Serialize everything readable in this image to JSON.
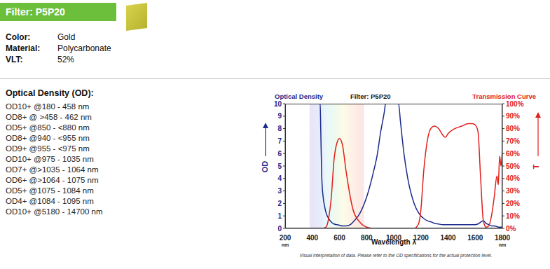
{
  "header": {
    "title": "Filter: P5P20",
    "specs": [
      {
        "label": "Color:",
        "value": "Gold"
      },
      {
        "label": "Material:",
        "value": "Polycarbonate"
      },
      {
        "label": "VLT:",
        "value": "52%"
      }
    ]
  },
  "od_list": {
    "title": "Optical Density (OD):",
    "items": [
      "OD10+ @180 - 458 nm",
      "OD8+ @ >458 - 462 nm",
      "OD5+ @850 - <880 nm",
      "OD8+ @940 - <955 nm",
      "OD9+ @955 - <975 nm",
      "OD10+ @975 - 1035 nm",
      "OD7+ @>1035 - 1064 nm",
      "OD6+ @>1064 - 1075 nm",
      "OD5+ @1075 - 1084 nm",
      "OD4+ @1084 - 1095 nm",
      "OD10+ @5180 - 14700 nm"
    ]
  },
  "chart_data": {
    "type": "line",
    "title": "Filter: P5P20",
    "xlabel": "Wavelength λ",
    "x_unit": "nm",
    "ylabel": "OD",
    "y2label": "T",
    "note": "Visual interpretation of data. Please refer to the OD specifications for the actual protection level.",
    "grid": false,
    "visible_band": [
      380,
      780
    ],
    "xlim": [
      200,
      1800
    ],
    "xticks": [
      200,
      400,
      600,
      800,
      1000,
      1200,
      1400,
      1600,
      1800
    ],
    "ylim": [
      0,
      10
    ],
    "yticks": [
      0,
      1,
      2,
      3,
      4,
      5,
      6,
      7,
      8,
      9,
      10
    ],
    "y2lim": [
      0,
      100
    ],
    "y2ticks": [
      {
        "value": 0,
        "label": "0%"
      },
      {
        "value": 10,
        "label": "10%"
      },
      {
        "value": 20,
        "label": "20%"
      },
      {
        "value": 30,
        "label": "30%"
      },
      {
        "value": 40,
        "label": "40%"
      },
      {
        "value": 50,
        "label": "50%"
      },
      {
        "value": 60,
        "label": "60%"
      },
      {
        "value": 70,
        "label": "70%"
      },
      {
        "value": 80,
        "label": "80%"
      },
      {
        "value": 90,
        "label": "90%"
      },
      {
        "value": 100,
        "label": "100%"
      }
    ],
    "x": [
      200,
      300,
      400,
      440,
      458,
      462,
      470,
      480,
      490,
      500,
      510,
      520,
      540,
      560,
      580,
      600,
      620,
      650,
      680,
      700,
      750,
      800,
      850,
      880,
      900,
      930,
      940,
      975,
      1000,
      1035,
      1050,
      1075,
      1100,
      1150,
      1180,
      1200,
      1220,
      1250,
      1280,
      1300,
      1330,
      1360,
      1380,
      1400,
      1450,
      1500,
      1550,
      1580,
      1600,
      1620,
      1640,
      1660,
      1680,
      1700,
      1720,
      1740,
      1760,
      1770,
      1780,
      1790,
      1800
    ],
    "series": [
      {
        "name": "Optical Density",
        "color": "#1b2a8c",
        "axis": "y",
        "values": [
          10,
          10,
          10,
          10,
          10,
          8,
          4,
          2.5,
          1.8,
          1.3,
          1,
          0.8,
          0.5,
          0.35,
          0.3,
          0.25,
          0.2,
          0.2,
          0.3,
          0.5,
          1.2,
          2.5,
          4.5,
          6,
          7.5,
          9.3,
          10,
          10,
          10,
          10,
          8.5,
          6,
          4.2,
          2,
          1.3,
          1,
          0.8,
          0.6,
          0.5,
          0.4,
          0.35,
          0.3,
          0.3,
          0.3,
          0.3,
          0.3,
          0.3,
          0.3,
          0.3,
          0.35,
          0.5,
          0.6,
          0.4,
          0.3,
          0.2,
          0.2,
          0.15,
          0.1,
          0.1,
          0.1,
          0.1
        ]
      },
      {
        "name": "Transmission Curve",
        "color": "#e0201c",
        "axis": "y2",
        "values": [
          0,
          0,
          0,
          0,
          0,
          0,
          0,
          0,
          0.5,
          1,
          3,
          8,
          25,
          55,
          68,
          72,
          68,
          45,
          25,
          15,
          5,
          1,
          0,
          0,
          0,
          0,
          0,
          0,
          0,
          0,
          0,
          0,
          0,
          0,
          3,
          15,
          45,
          72,
          81,
          82,
          80,
          75,
          73,
          76,
          80,
          82,
          84,
          84,
          83,
          78,
          40,
          6,
          1,
          2,
          10,
          25,
          42,
          35,
          58,
          50,
          64
        ]
      }
    ]
  }
}
